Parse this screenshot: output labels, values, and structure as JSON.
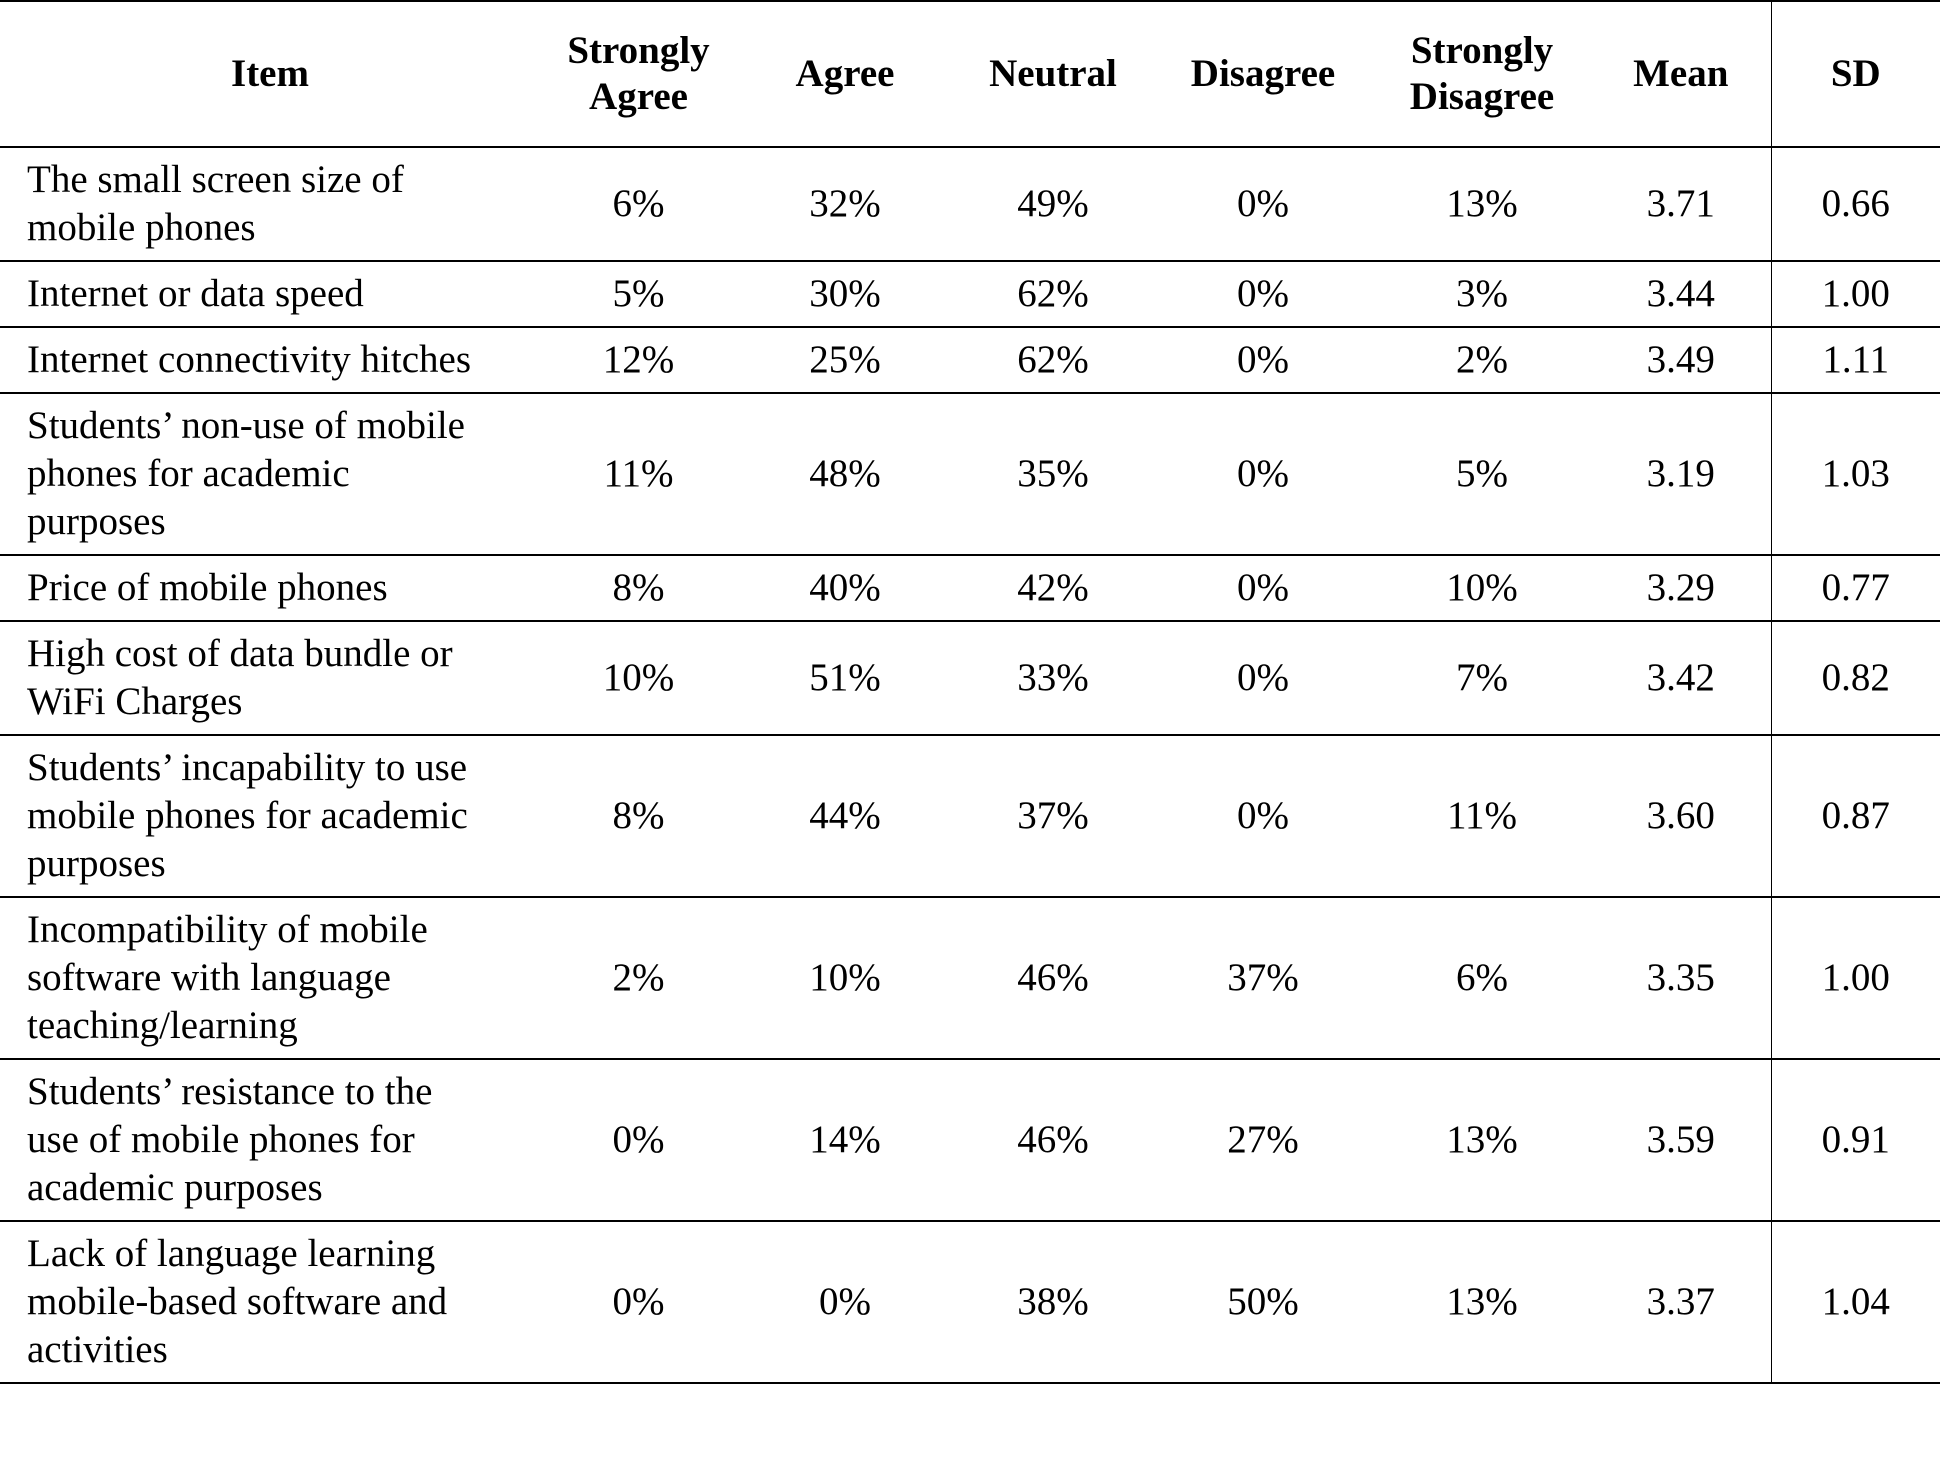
{
  "table": {
    "headers": {
      "item": "Item",
      "strongly_agree_1": "Strongly",
      "strongly_agree_2": "Agree",
      "agree": "Agree",
      "neutral": "Neutral",
      "disagree": "Disagree",
      "strongly_disagree_1": "Strongly",
      "strongly_disagree_2": "Disagree",
      "mean": "Mean",
      "sd": "SD"
    },
    "rows": [
      {
        "item_lines": [
          "The small screen size of",
          "mobile phones"
        ],
        "sa": "6%",
        "a": "32%",
        "n": "49%",
        "d": "0%",
        "sd": "13%",
        "mean": "3.71",
        "sdv": "0.66"
      },
      {
        "item_lines": [
          "Internet or data speed"
        ],
        "sa": "5%",
        "a": "30%",
        "n": "62%",
        "d": "0%",
        "sd": "3%",
        "mean": "3.44",
        "sdv": "1.00"
      },
      {
        "item_lines": [
          "Internet connectivity hitches"
        ],
        "sa": "12%",
        "a": "25%",
        "n": "62%",
        "d": "0%",
        "sd": "2%",
        "mean": "3.49",
        "sdv": "1.11"
      },
      {
        "item_lines": [
          "Students’ non-use of mobile",
          "phones for academic",
          "purposes"
        ],
        "sa": "11%",
        "a": "48%",
        "n": "35%",
        "d": "0%",
        "sd": "5%",
        "mean": "3.19",
        "sdv": "1.03"
      },
      {
        "item_lines": [
          "Price of mobile phones"
        ],
        "sa": "8%",
        "a": "40%",
        "n": "42%",
        "d": "0%",
        "sd": "10%",
        "mean": "3.29",
        "sdv": "0.77"
      },
      {
        "item_lines": [
          "High cost of data bundle or",
          "WiFi Charges"
        ],
        "sa": "10%",
        "a": "51%",
        "n": "33%",
        "d": "0%",
        "sd": "7%",
        "mean": "3.42",
        "sdv": "0.82"
      },
      {
        "item_lines": [
          "Students’ incapability  to use",
          "mobile phones for academic",
          "purposes"
        ],
        "sa": "8%",
        "a": "44%",
        "n": "37%",
        "d": "0%",
        "sd": "11%",
        "mean": "3.60",
        "sdv": "0.87"
      },
      {
        "item_lines": [
          "Incompatibility of mobile",
          "software with language",
          "teaching/learning"
        ],
        "sa": "2%",
        "a": "10%",
        "n": "46%",
        "d": "37%",
        "sd": "6%",
        "mean": "3.35",
        "sdv": "1.00"
      },
      {
        "item_lines": [
          "Students’ resistance to the",
          "use of mobile phones for",
          "academic purposes"
        ],
        "sa": "0%",
        "a": "14%",
        "n": "46%",
        "d": "27%",
        "sd": "13%",
        "mean": "3.59",
        "sdv": "0.91"
      },
      {
        "item_lines": [
          "Lack of language learning",
          "mobile-based software and",
          "activities"
        ],
        "sa": "0%",
        "a": "0%",
        "n": "38%",
        "d": "50%",
        "sd": "13%",
        "mean": "3.37",
        "sdv": "1.04"
      }
    ]
  }
}
